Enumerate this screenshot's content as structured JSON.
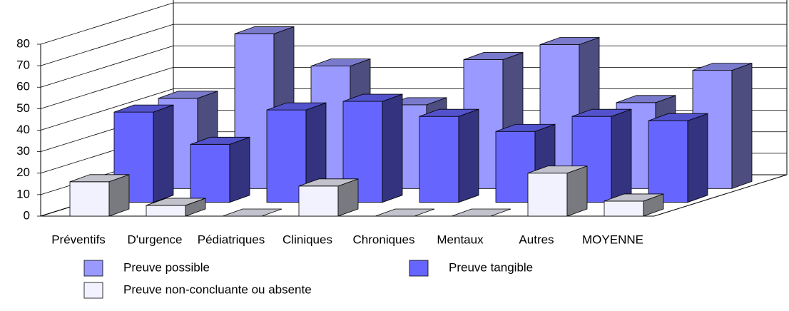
{
  "chart_data": {
    "type": "bar3d",
    "categories": [
      "Préventifs",
      "D'urgence",
      "Pédiatriques",
      "Cliniques",
      "Chroniques",
      "Mentaux",
      "Autres",
      "MOYENNE"
    ],
    "series": [
      {
        "name": "Preuve possible",
        "color": "#9999ff",
        "values": [
          42,
          72,
          57,
          39,
          60,
          67,
          40,
          55
        ]
      },
      {
        "name": "Preuve tangible",
        "color": "#6666ff",
        "values": [
          42,
          27,
          43,
          47,
          40,
          33,
          40,
          38
        ]
      },
      {
        "name": "Preuve non-concluante ou absente",
        "color": "#f2f2ff",
        "values": [
          16,
          5,
          0,
          14,
          0,
          0,
          20,
          7
        ]
      }
    ],
    "ylim": [
      0,
      80
    ],
    "yticks": [
      0,
      10,
      20,
      30,
      40,
      50,
      60,
      70,
      80
    ],
    "grid": true
  }
}
